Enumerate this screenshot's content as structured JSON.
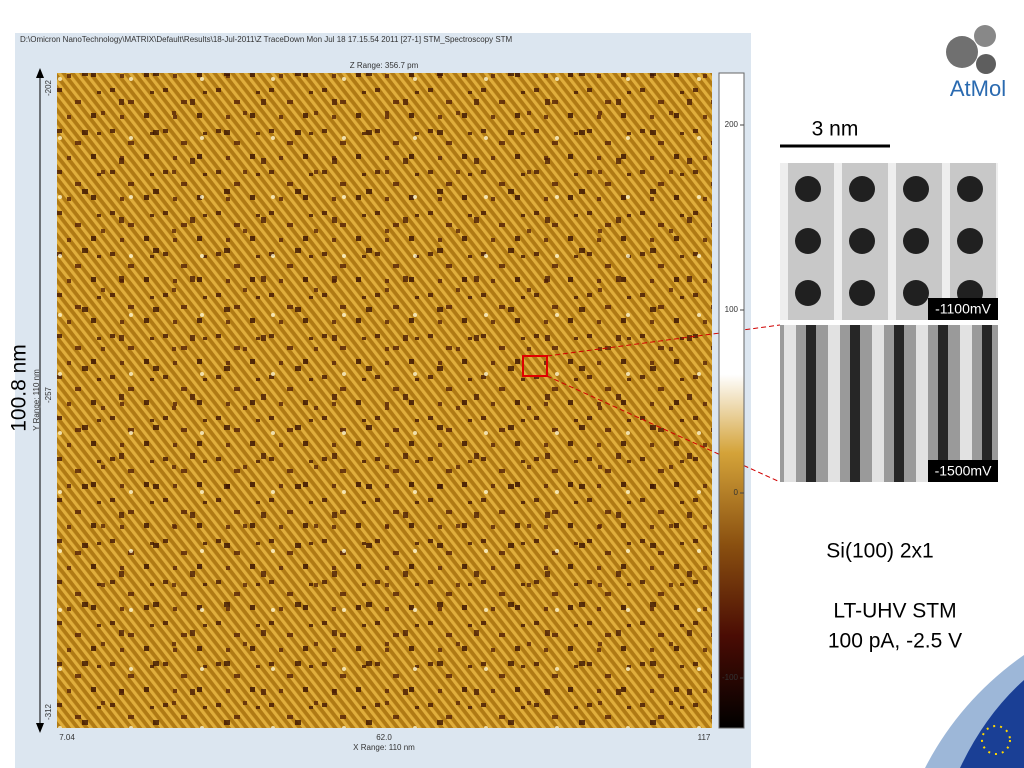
{
  "window": {
    "path": "D:\\Omicron NanoTechnology\\MATRIX\\Default\\Results\\18-Jul-2011\\Z TraceDown Mon Jul 18 17.15.54 2011 [27-1]  STM_Spectroscopy STM",
    "z_range": "Z Range:  356.7 pm",
    "y_axis": {
      "labels": [
        "-202",
        "-257",
        "-312"
      ],
      "title": "Y Range: 110 nm"
    },
    "x_axis": {
      "labels": [
        "7.04",
        "62.0",
        "117"
      ],
      "title": "X Range: 110 nm"
    },
    "colorbar": {
      "labels": [
        "200",
        "100",
        "0",
        "-100"
      ]
    }
  },
  "slide": {
    "logo": "AtMol",
    "height_label": "100.8 nm",
    "scale_bar": "3 nm",
    "insets": [
      "-1100mV",
      "-1500mV"
    ],
    "sample": "Si(100) 2x1",
    "method": [
      "LT-UHV STM",
      "100 pA, -2.5 V"
    ]
  }
}
